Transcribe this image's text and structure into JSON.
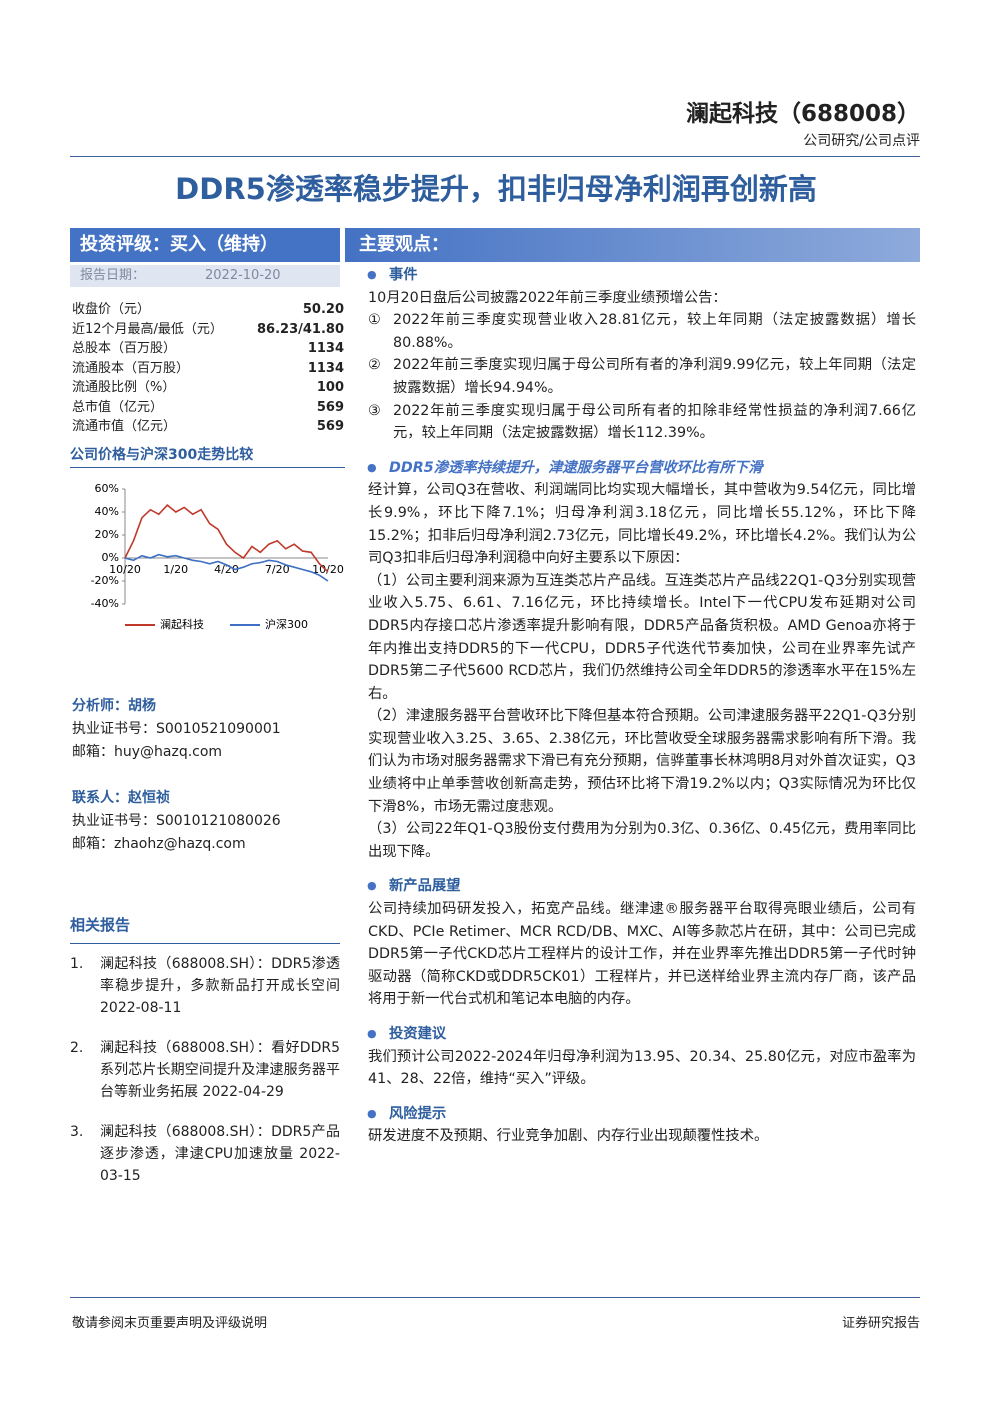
{
  "header": {
    "company": "澜起科技（688008）",
    "category": "公司研究/公司点评"
  },
  "title": "DDR5渗透率稳步提升，扣非归母净利润再创新高",
  "rating": {
    "label": "投资评级：买入（维持）",
    "date_label": "报告日期：",
    "date": "2022-10-20"
  },
  "stats": [
    {
      "label": "收盘价（元）",
      "value": "50.20"
    },
    {
      "label": "近12个月最高/最低（元）",
      "value": "86.23/41.80"
    },
    {
      "label": "总股本（百万股）",
      "value": "1134"
    },
    {
      "label": "流通股本（百万股）",
      "value": "1134"
    },
    {
      "label": "流通股比例（%）",
      "value": "100"
    },
    {
      "label": "总市值（亿元）",
      "value": "569"
    },
    {
      "label": "流通市值（亿元）",
      "value": "569"
    }
  ],
  "chart_title": "公司价格与沪深300走势比较",
  "chart_data": {
    "type": "line",
    "categories": [
      "10/20",
      null,
      null,
      null,
      null,
      null,
      "1/20",
      null,
      null,
      null,
      null,
      null,
      "4/20",
      null,
      null,
      null,
      null,
      null,
      "7/20",
      null,
      null,
      null,
      null,
      null,
      "10/20"
    ],
    "series": [
      {
        "name": "澜起科技",
        "color": "#c0392b",
        "values": [
          0,
          15,
          35,
          42,
          38,
          46,
          40,
          44,
          38,
          42,
          30,
          25,
          12,
          5,
          0,
          10,
          5,
          12,
          15,
          8,
          12,
          6,
          5,
          -5,
          -12
        ]
      },
      {
        "name": "沪深300",
        "color": "#3d6fc4",
        "values": [
          0,
          -2,
          2,
          0,
          3,
          1,
          2,
          0,
          -2,
          -3,
          -5,
          -3,
          -6,
          -10,
          -8,
          -5,
          -4,
          -2,
          -3,
          -6,
          -8,
          -10,
          -12,
          -15,
          -20
        ]
      }
    ],
    "ylim": [
      -40,
      60
    ],
    "yticks": [
      {
        "value": 60,
        "label": "60%"
      },
      {
        "value": 40,
        "label": "40%"
      },
      {
        "value": 20,
        "label": "20%"
      },
      {
        "value": 0,
        "label": "0%"
      },
      {
        "value": -20,
        "label": "-20%"
      },
      {
        "value": -40,
        "label": "-40%"
      }
    ],
    "grid": false,
    "legend": "bottom"
  },
  "analyst": {
    "title": "分析师：胡杨",
    "cert": "执业证书号：S0010521090001",
    "email": "邮箱：huy@hazq.com"
  },
  "contact": {
    "title": "联系人：赵恒祯",
    "cert": "执业证书号：S0010121080026",
    "email": "邮箱：zhaohz@hazq.com"
  },
  "related": {
    "title": "相关报告",
    "items": [
      {
        "marker": "1.",
        "text": "澜起科技（688008.SH）：DDR5渗透率稳步提升，多款新品打开成长空间 2022-08-11"
      },
      {
        "marker": "2.",
        "text": "澜起科技（688008.SH）：看好DDR5系列芯片长期空间提升及津逮服务器平台等新业务拓展 2022-04-29"
      },
      {
        "marker": "3.",
        "text": "澜起科技（688008.SH）：DDR5产品逐步渗透，津逮CPU加速放量 2022-03-15"
      }
    ]
  },
  "main": {
    "heading": "主要观点：",
    "sections": [
      {
        "title": "事件",
        "paragraphs": [
          "10月20日盘后公司披露2022年前三季度业绩预增公告："
        ],
        "items": [
          {
            "marker": "①",
            "text": "2022年前三季度实现营业收入28.81亿元，较上年同期（法定披露数据）增长80.88%。"
          },
          {
            "marker": "②",
            "text": "2022年前三季度实现归属于母公司所有者的净利润9.99亿元，较上年同期（法定披露数据）增长94.94%。"
          },
          {
            "marker": "③",
            "text": "2022年前三季度实现归属于母公司所有者的扣除非经常性损益的净利润7.66亿元，较上年同期（法定披露数据）增长112.39%。"
          }
        ]
      },
      {
        "title": "DDR5渗透率持续提升，津逮服务器平台营收环比有所下滑",
        "paragraphs": [
          "经计算，公司Q3在营收、利润端同比均实现大幅增长，其中营收为9.54亿元，同比增长9.9%，环比下降7.1%；归母净利润3.18亿元，同比增长55.12%，环比下降15.2%；扣非后归母净利润2.73亿元，同比增长49.2%，环比增长4.2%。我们认为公司Q3扣非后归母净利润稳中向好主要系以下原因：",
          "（1）公司主要利润来源为互连类芯片产品线。互连类芯片产品线22Q1-Q3分别实现营业收入5.75、6.61、7.16亿元，环比持续增长。Intel下一代CPU发布延期对公司DDR5内存接口芯片渗透率提升影响有限，DDR5产品备货积极。AMD Genoa亦将于年内推出支持DDR5的下一代CPU，DDR5子代迭代节奏加快，公司在业界率先试产DDR5第二子代5600 RCD芯片，我们仍然维持公司全年DDR5的渗透率水平在15%左右。",
          "（2）津逮服务器平台营收环比下降但基本符合预期。公司津逮服务器平22Q1-Q3分别实现营业收入3.25、3.65、2.38亿元，环比营收受全球服务器需求影响有所下滑。我们认为市场对服务器需求下滑已有充分预期，信骅董事长林鸿明8月对外首次证实，Q3业绩将中止单季营收创新高走势，预估环比将下滑19.2%以内；Q3实际情况为环比仅下滑8%，市场无需过度悲观。",
          "（3）公司22年Q1-Q3股份支付费用为分别为0.3亿、0.36亿、0.45亿元，费用率同比出现下降。"
        ]
      },
      {
        "title": "新产品展望",
        "paragraphs": [
          "公司持续加码研发投入，拓宽产品线。继津逮®服务器平台取得亮眼业绩后，公司有CKD、PCIe Retimer、MCR RCD/DB、MXC、AI等多款芯片在研，其中：公司已完成DDR5第一子代CKD芯片工程样片的设计工作，并在业界率先推出DDR5第一子代时钟驱动器（简称CKD或DDR5CK01）工程样片，并已送样给业界主流内存厂商，该产品将用于新一代台式机和笔记本电脑的内存。"
        ]
      },
      {
        "title": "投资建议",
        "paragraphs": [
          "我们预计公司2022-2024年归母净利润为13.95、20.34、25.80亿元，对应市盈率为41、28、22倍，维持“买入”评级。"
        ]
      },
      {
        "title": "风险提示",
        "paragraphs": [
          "研发进度不及预期、行业竞争加剧、内存行业出现颠覆性技术。"
        ]
      }
    ]
  },
  "footer": {
    "left": "敬请参阅末页重要声明及评级说明",
    "right": "证券研究报告"
  }
}
